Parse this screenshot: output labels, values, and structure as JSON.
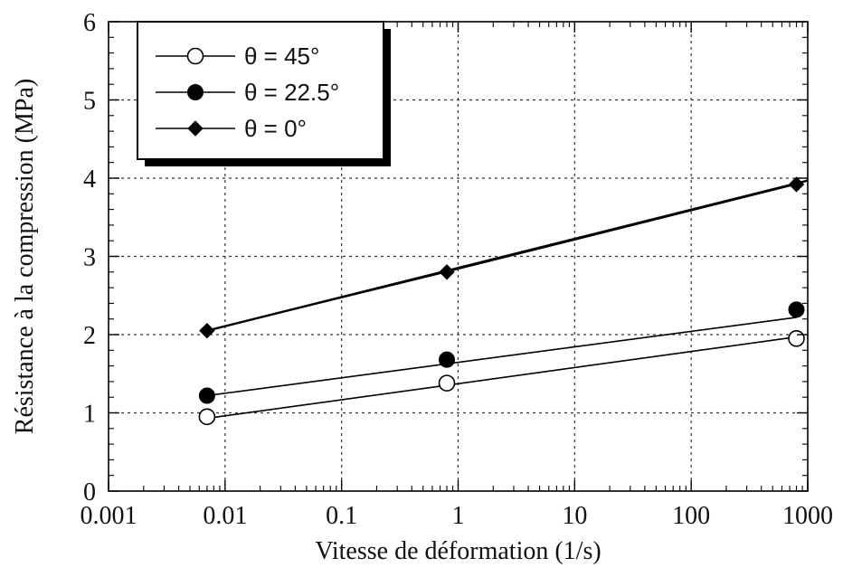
{
  "chart_data": {
    "type": "line",
    "title": "",
    "xlabel": "Vitesse de déformation (1/s)",
    "ylabel": "Résistance à la compression (MPa)",
    "x_scale": "log",
    "xlim": [
      0.001,
      1000
    ],
    "ylim": [
      0,
      6
    ],
    "x_ticks": [
      0.001,
      0.01,
      0.1,
      1,
      10,
      100,
      1000
    ],
    "x_tick_labels": [
      "0.001",
      "0.01",
      "0.1",
      "1",
      "10",
      "100",
      "1000"
    ],
    "y_ticks": [
      0,
      1,
      2,
      3,
      4,
      5,
      6
    ],
    "y_tick_labels": [
      "0",
      "1",
      "2",
      "3",
      "4",
      "5",
      "6"
    ],
    "grid": true,
    "legend_position": "top-left",
    "series": [
      {
        "name": "θ = 45°",
        "marker": "open-circle",
        "color": "#000000",
        "x": [
          0.007,
          0.8,
          800
        ],
        "y": [
          0.95,
          1.38,
          1.95
        ],
        "fit_x": [
          0.007,
          800
        ],
        "fit_y": [
          0.93,
          1.97
        ]
      },
      {
        "name": "θ = 22.5°",
        "marker": "filled-circle",
        "color": "#000000",
        "x": [
          0.007,
          0.8,
          800
        ],
        "y": [
          1.22,
          1.68,
          2.32
        ],
        "fit_x": [
          0.007,
          800
        ],
        "fit_y": [
          1.22,
          2.22
        ]
      },
      {
        "name": "θ = 0°",
        "marker": "filled-diamond",
        "color": "#000000",
        "x": [
          0.007,
          0.8,
          800
        ],
        "y": [
          2.05,
          2.8,
          3.92
        ],
        "fit_x": [
          0.007,
          1000
        ],
        "fit_y": [
          2.05,
          3.97
        ]
      }
    ]
  }
}
